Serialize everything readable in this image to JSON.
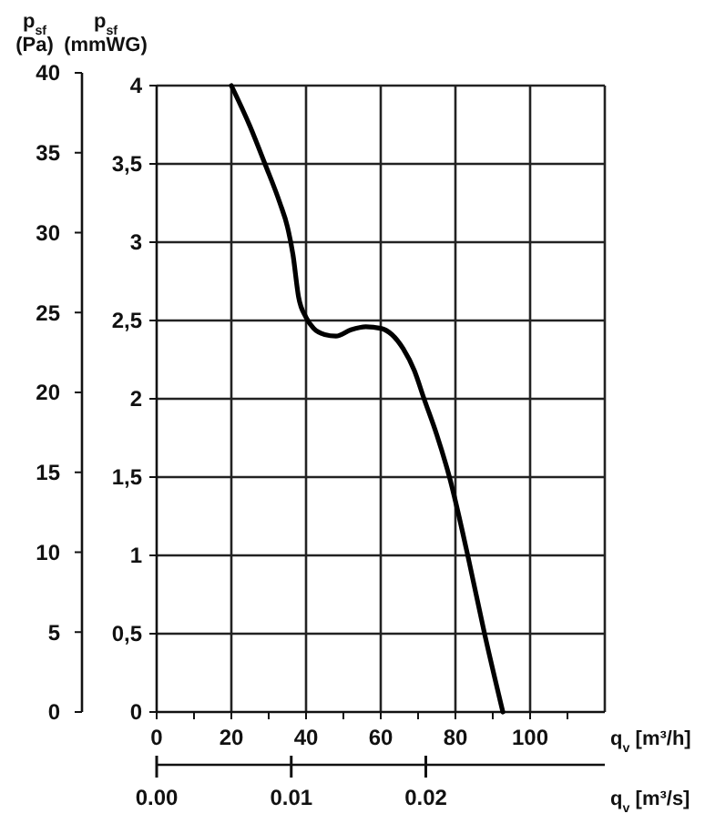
{
  "chart_data": {
    "type": "line",
    "xlabel": "q$_{v}$ [m³/h]",
    "x2label": "q$_{v}$ [m³/s]",
    "ylabel": "p$_{sf}$ (mmWG)",
    "y2label": "p$_{sf}$ (Pa)",
    "series": [
      {
        "color": "#000000",
        "x": [
          20,
          25,
          29,
          33,
          35,
          36.5,
          38,
          40,
          42,
          45,
          48,
          52,
          56,
          60,
          63,
          66,
          69,
          71.6,
          75,
          78.4,
          83.3,
          87.8,
          92.7
        ],
        "values": [
          4,
          3.74,
          3.5,
          3.25,
          3.1,
          2.92,
          2.65,
          2.52,
          2.45,
          2.41,
          2.4,
          2.44,
          2.46,
          2.45,
          2.41,
          2.32,
          2.18,
          2,
          1.77,
          1.5,
          1,
          0.5,
          0
        ]
      }
    ],
    "xlim": [
      0,
      120
    ],
    "xticks": [
      0,
      {
        "value": 10,
        "label": null
      },
      20,
      {
        "value": 30,
        "label": null
      },
      40,
      {
        "value": 50,
        "label": null
      },
      60,
      {
        "value": 70,
        "label": null
      },
      80,
      {
        "value": 90,
        "label": null
      },
      100,
      {
        "value": 110,
        "label": null
      }
    ],
    "x2lim": [
      0,
      0.0333
    ],
    "x2ticks": [
      {
        "value": 0,
        "label": "0.00"
      },
      0.01,
      0.02
    ],
    "ylim": [
      0,
      4
    ],
    "yticks": [
      0,
      {
        "value": 0.5,
        "label": "0,5"
      },
      1,
      {
        "value": 1.5,
        "label": "1,5"
      },
      2,
      {
        "value": 2.5,
        "label": "2,5"
      },
      3,
      {
        "value": 3.5,
        "label": "3,5"
      },
      4
    ],
    "y2lim": [
      0,
      40
    ],
    "y2ticks": [
      0,
      5,
      10,
      15,
      20,
      25,
      30,
      35,
      40
    ],
    "grid": true,
    "marker": "none",
    "line_style": "solid"
  }
}
